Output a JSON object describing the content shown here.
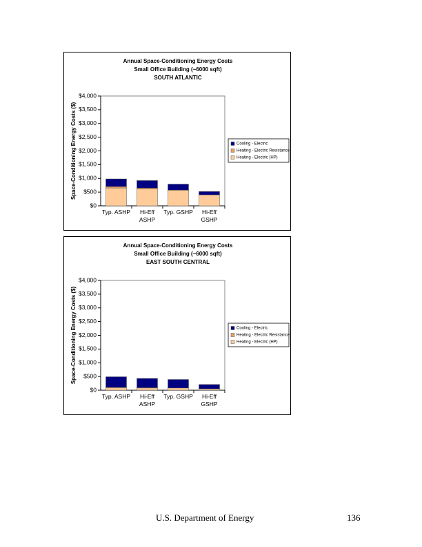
{
  "chart_data": [
    {
      "type": "bar",
      "stacked": true,
      "title": "Annual Space-Conditioning Energy Costs",
      "subtitle": "Small Office Building (~6000 sqft)",
      "region": "SOUTH ATLANTIC",
      "y_label": "Space-Conditioning Energy Costs ($)",
      "categories": [
        "Typ. ASHP",
        "Hi-Eff\nASHP",
        "Typ. GSHP",
        "Hi-Eff\nGSHP"
      ],
      "series": [
        {
          "name": "Heating - Electric (HP)",
          "color": "#ffcc99",
          "values": [
            650,
            610,
            570,
            400
          ]
        },
        {
          "name": "Heating - Electric Resistance",
          "color": "#e8a060",
          "values": [
            50,
            40,
            0,
            0
          ]
        },
        {
          "name": "Cooling - Electric",
          "color": "#000080",
          "values": [
            280,
            270,
            220,
            120
          ]
        }
      ],
      "ylim": [
        0,
        4000
      ],
      "yticks": [
        {
          "value": 0,
          "label": "$0"
        },
        {
          "value": 500,
          "label": "$500"
        },
        {
          "value": 1000,
          "label": "$1,000"
        },
        {
          "value": 1500,
          "label": "$1,500"
        },
        {
          "value": 2000,
          "label": "$2,000"
        },
        {
          "value": 2500,
          "label": "$2,500"
        },
        {
          "value": 3000,
          "label": "$3,000"
        },
        {
          "value": 3500,
          "label": "$3,500"
        },
        {
          "value": 4000,
          "label": "$4,000"
        }
      ],
      "legend": "right"
    },
    {
      "type": "bar",
      "stacked": true,
      "title": "Annual Space-Conditioning Energy Costs",
      "subtitle": "Small Office Building (~6000 sqft)",
      "region": "EAST SOUTH CENTRAL",
      "y_label": "Space-Conditioning Energy Costs ($)",
      "categories": [
        "Typ. ASHP",
        "Hi-Eff\nASHP",
        "Typ. GSHP",
        "Hi-Eff\nGSHP"
      ],
      "series": [
        {
          "name": "Heating - Electric (HP)",
          "color": "#ffcc99",
          "values": [
            90,
            80,
            80,
            50
          ]
        },
        {
          "name": "Heating - Electric Resistance",
          "color": "#e8a060",
          "values": [
            20,
            15,
            0,
            0
          ]
        },
        {
          "name": "Cooling - Electric",
          "color": "#000080",
          "values": [
            380,
            335,
            310,
            160
          ]
        }
      ],
      "ylim": [
        0,
        4000
      ],
      "yticks": [
        {
          "value": 0,
          "label": "$0"
        },
        {
          "value": 500,
          "label": "$500"
        },
        {
          "value": 1000,
          "label": "$1,000"
        },
        {
          "value": 1500,
          "label": "$1,500"
        },
        {
          "value": 2000,
          "label": "$2,000"
        },
        {
          "value": 2500,
          "label": "$2,500"
        },
        {
          "value": 3000,
          "label": "$3,000"
        },
        {
          "value": 3500,
          "label": "$3,500"
        },
        {
          "value": 4000,
          "label": "$4,000"
        }
      ],
      "legend": "right"
    }
  ],
  "footer": {
    "publisher": "U.S. Department of Energy",
    "page": 136
  }
}
